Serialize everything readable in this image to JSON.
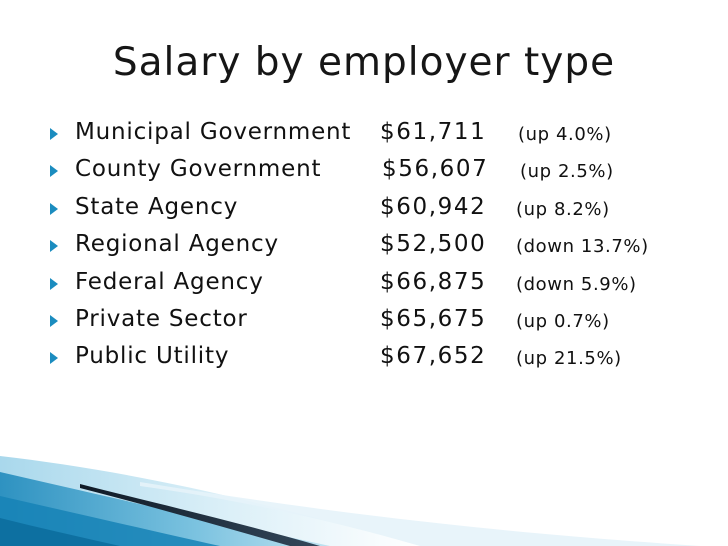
{
  "title": "Salary by employer type",
  "rows": [
    {
      "label": "Municipal Government",
      "value": "$61,711",
      "change": "(up 4.0%)"
    },
    {
      "label": "County Government",
      "value": "$56,607",
      "change": "(up 2.5%)"
    },
    {
      "label": "State Agency",
      "value": "$60,942",
      "change": "(up 8.2%)"
    },
    {
      "label": "Regional Agency",
      "value": "$52,500",
      "change": "(down 13.7%)"
    },
    {
      "label": "Federal Agency",
      "value": "$66,875",
      "change": "(down 5.9%)"
    },
    {
      "label": "Private Sector",
      "value": "$65,675",
      "change": "(up 0.7%)"
    },
    {
      "label": "Public Utility",
      "value": "$67,652",
      "change": "(up 21.5%)"
    }
  ],
  "colors": {
    "bullet": "#1b8cbf",
    "swoosh_light": "#cfe9f4",
    "swoosh_mid": "#5fb4d6",
    "swoosh_dark": "#1c2b3a"
  }
}
